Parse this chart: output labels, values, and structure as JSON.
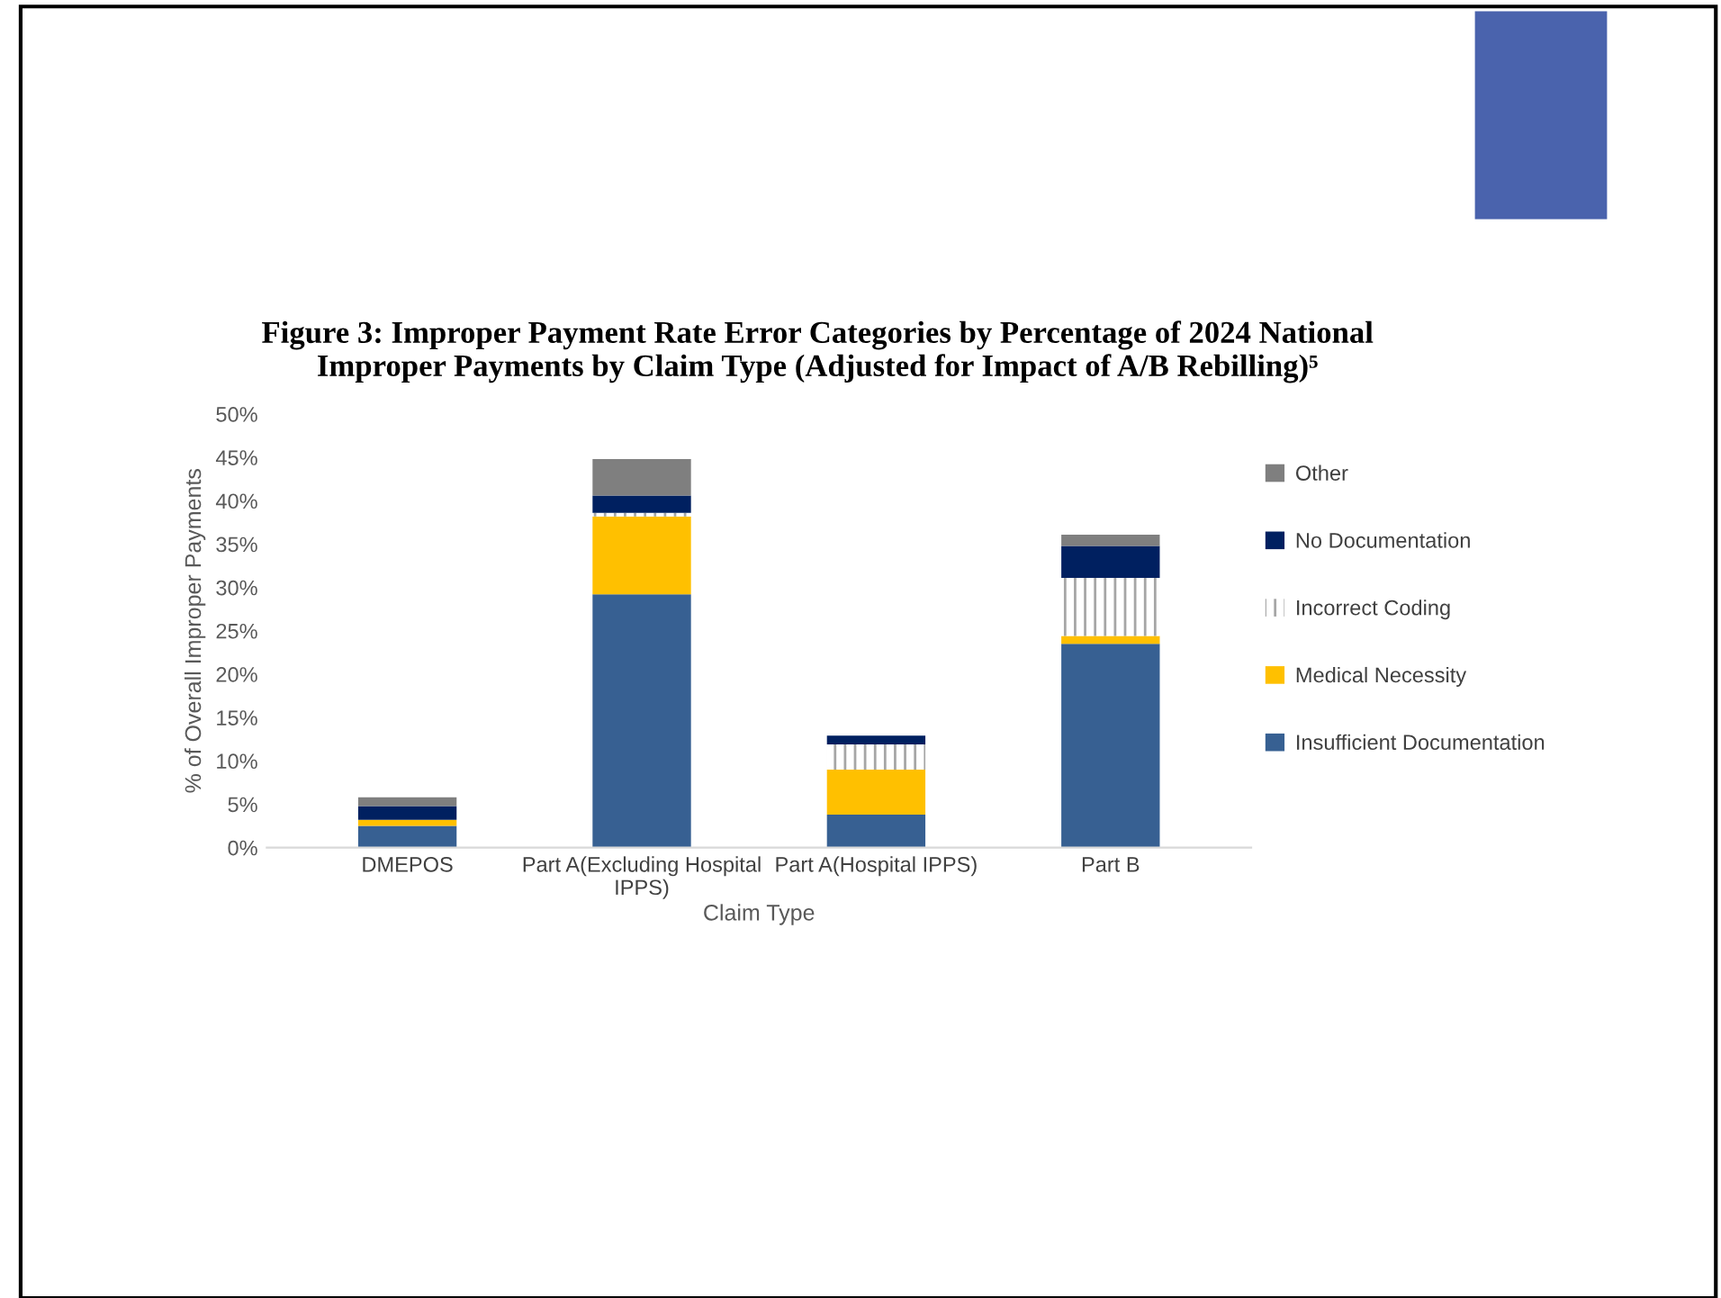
{
  "chart_data": {
    "type": "bar",
    "stacked": true,
    "title": "Figure 3: Improper Payment Rate Error Categories by Percentage of 2024 National\nImproper Payments by Claim Type (Adjusted for Impact of A/B Rebilling)⁵",
    "xlabel": "Claim Type",
    "ylabel": "% of Overall Improper Payments",
    "categories": [
      "DMEPOS",
      "Part A(Excluding Hospital\nIPPS)",
      "Part A(Hospital IPPS)",
      "Part B"
    ],
    "series": [
      {
        "name": "Insufficient Documentation",
        "color": "#376092",
        "values": [
          2.5,
          29.2,
          3.8,
          23.5
        ]
      },
      {
        "name": "Medical Necessity",
        "color": "#ffc000",
        "values": [
          0.7,
          9.0,
          5.2,
          0.9
        ]
      },
      {
        "name": "Incorrect Coding",
        "color": "#ffffff",
        "values": [
          0,
          0.4,
          2.9,
          6.7
        ]
      },
      {
        "name": "No Documentation",
        "color": "#002060",
        "values": [
          1.6,
          2.0,
          1.0,
          3.7
        ]
      },
      {
        "name": "Other",
        "color": "#7f7f7f",
        "values": [
          1.0,
          4.2,
          0,
          1.3
        ]
      }
    ],
    "ylim": [
      0,
      50
    ],
    "yticks": [
      {
        "value": 0,
        "label": "0%"
      },
      {
        "value": 5,
        "label": "5%"
      },
      {
        "value": 10,
        "label": "10%"
      },
      {
        "value": 15,
        "label": "15%"
      },
      {
        "value": 20,
        "label": "20%"
      },
      {
        "value": 25,
        "label": "25%"
      },
      {
        "value": 30,
        "label": "30%"
      },
      {
        "value": 35,
        "label": "35%"
      },
      {
        "value": 40,
        "label": "40%"
      },
      {
        "value": 45,
        "label": "45%"
      },
      {
        "value": 50,
        "label": "50%"
      }
    ],
    "grid": false,
    "legend": "right"
  }
}
